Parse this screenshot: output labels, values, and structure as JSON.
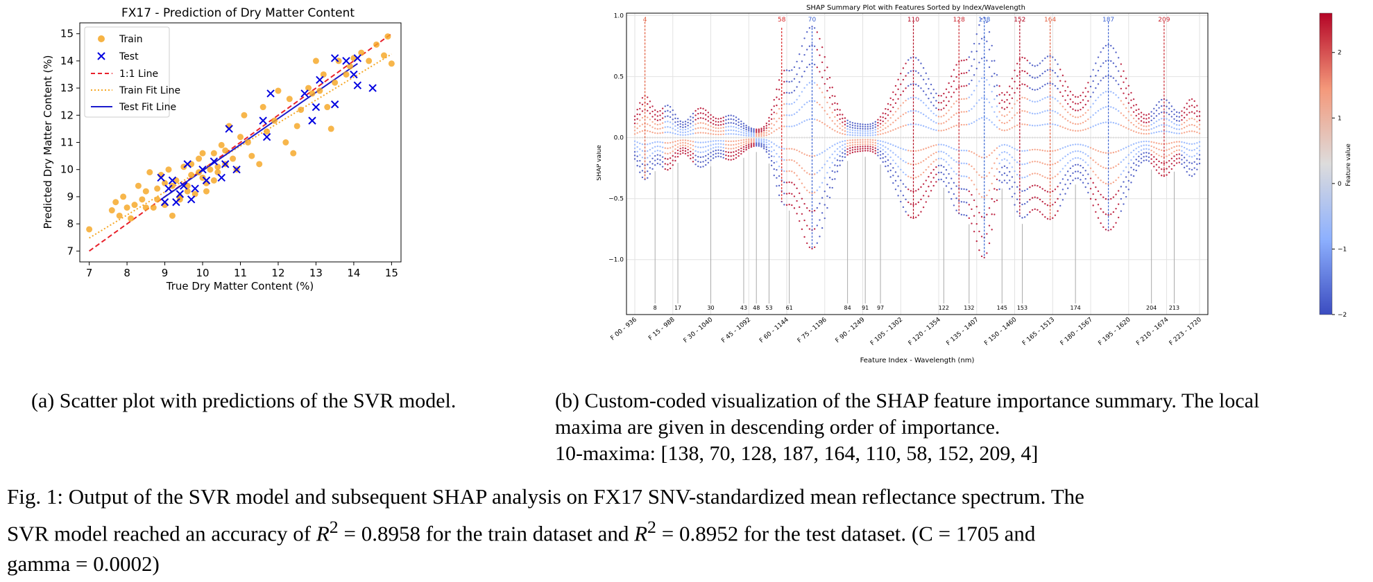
{
  "chart_data": [
    {
      "type": "scatter",
      "title": "FX17 - Prediction of Dry Matter Content",
      "xlabel": "True Dry Matter Content (%)",
      "ylabel": "Predicted Dry Matter Content (%)",
      "xlim": [
        6.75,
        15.25
      ],
      "ylim": [
        6.6,
        15.4
      ],
      "xticks": [
        "7",
        "8",
        "9",
        "10",
        "11",
        "12",
        "13",
        "14",
        "15"
      ],
      "yticks": [
        "7",
        "8",
        "9",
        "10",
        "11",
        "12",
        "13",
        "14",
        "15"
      ],
      "grid": false,
      "legend_position": "top-left",
      "legend": [
        "Train",
        "Test",
        "1:1 Line",
        "Train Fit Line",
        "Test Fit Line"
      ],
      "colors": {
        "train": "#f5a623",
        "test": "#0000e0",
        "identity": "#e8202a",
        "train_fit": "#f5a623",
        "test_fit": "#1a1acc"
      },
      "lines": {
        "identity": [
          [
            7,
            7
          ],
          [
            15,
            15
          ]
        ],
        "train_fit": [
          [
            7,
            7.48
          ],
          [
            15,
            14.25
          ]
        ],
        "test_fit": [
          [
            8.9,
            8.9
          ],
          [
            14.1,
            13.9
          ]
        ]
      },
      "train_points": [
        [
          7.0,
          7.8
        ],
        [
          7.6,
          8.5
        ],
        [
          7.7,
          8.8
        ],
        [
          7.8,
          8.3
        ],
        [
          7.9,
          9.0
        ],
        [
          8.0,
          8.6
        ],
        [
          8.1,
          8.2
        ],
        [
          8.2,
          8.7
        ],
        [
          8.3,
          9.4
        ],
        [
          8.4,
          8.9
        ],
        [
          8.5,
          9.2
        ],
        [
          8.6,
          9.9
        ],
        [
          8.7,
          8.6
        ],
        [
          8.8,
          9.3
        ],
        [
          8.9,
          9.8
        ],
        [
          9.0,
          8.7
        ],
        [
          9.0,
          9.5
        ],
        [
          9.1,
          10.0
        ],
        [
          9.2,
          8.3
        ],
        [
          9.3,
          9.6
        ],
        [
          9.4,
          9.0
        ],
        [
          9.5,
          10.1
        ],
        [
          9.6,
          9.4
        ],
        [
          9.7,
          9.8
        ],
        [
          9.8,
          9.1
        ],
        [
          9.9,
          10.4
        ],
        [
          10.0,
          9.7
        ],
        [
          10.1,
          9.2
        ],
        [
          10.2,
          10.0
        ],
        [
          10.3,
          10.6
        ],
        [
          10.4,
          9.9
        ],
        [
          10.5,
          10.9
        ],
        [
          10.6,
          10.2
        ],
        [
          10.7,
          11.6
        ],
        [
          10.8,
          10.4
        ],
        [
          10.9,
          10.0
        ],
        [
          11.0,
          11.2
        ],
        [
          11.1,
          12.0
        ],
        [
          11.3,
          10.5
        ],
        [
          11.5,
          10.2
        ],
        [
          11.6,
          12.3
        ],
        [
          11.7,
          11.4
        ],
        [
          11.9,
          11.8
        ],
        [
          12.0,
          12.9
        ],
        [
          12.2,
          11.0
        ],
        [
          12.3,
          12.6
        ],
        [
          12.4,
          10.6
        ],
        [
          12.5,
          11.6
        ],
        [
          12.6,
          12.2
        ],
        [
          12.8,
          13.0
        ],
        [
          12.9,
          12.8
        ],
        [
          13.0,
          14.0
        ],
        [
          13.1,
          12.9
        ],
        [
          13.2,
          13.5
        ],
        [
          13.3,
          12.3
        ],
        [
          13.4,
          11.5
        ],
        [
          13.5,
          13.2
        ],
        [
          13.6,
          14.0
        ],
        [
          13.8,
          13.5
        ],
        [
          13.9,
          13.8
        ],
        [
          14.0,
          14.1
        ],
        [
          14.2,
          14.3
        ],
        [
          14.4,
          14.0
        ],
        [
          14.6,
          14.6
        ],
        [
          14.8,
          14.2
        ],
        [
          14.9,
          14.9
        ],
        [
          15.0,
          13.9
        ],
        [
          9.4,
          8.9
        ],
        [
          9.6,
          9.2
        ],
        [
          10.1,
          9.5
        ],
        [
          10.4,
          10.1
        ],
        [
          8.8,
          8.9
        ],
        [
          9.2,
          9.4
        ],
        [
          9.9,
          9.9
        ],
        [
          10.6,
          10.7
        ],
        [
          11.2,
          11.0
        ],
        [
          8.5,
          8.6
        ],
        [
          9.7,
          10.2
        ],
        [
          10.0,
          10.6
        ],
        [
          10.3,
          9.6
        ]
      ],
      "test_points": [
        [
          8.9,
          9.7
        ],
        [
          9.0,
          8.8
        ],
        [
          9.1,
          9.3
        ],
        [
          9.2,
          9.6
        ],
        [
          9.3,
          8.8
        ],
        [
          9.4,
          9.1
        ],
        [
          9.5,
          9.4
        ],
        [
          9.6,
          10.2
        ],
        [
          9.7,
          8.9
        ],
        [
          9.8,
          9.3
        ],
        [
          10.0,
          10.0
        ],
        [
          10.1,
          9.6
        ],
        [
          10.3,
          10.3
        ],
        [
          10.5,
          9.7
        ],
        [
          10.6,
          10.2
        ],
        [
          10.7,
          11.5
        ],
        [
          10.9,
          10.0
        ],
        [
          11.6,
          11.8
        ],
        [
          11.7,
          11.2
        ],
        [
          11.8,
          12.8
        ],
        [
          12.7,
          12.8
        ],
        [
          12.9,
          11.8
        ],
        [
          13.0,
          12.3
        ],
        [
          13.1,
          13.3
        ],
        [
          13.5,
          12.4
        ],
        [
          13.5,
          14.1
        ],
        [
          13.8,
          14.0
        ],
        [
          14.0,
          13.5
        ],
        [
          14.1,
          13.1
        ],
        [
          14.1,
          14.1
        ],
        [
          14.5,
          13.0
        ]
      ]
    },
    {
      "type": "scatter",
      "title": "SHAP Summary Plot with Features Sorted by Index/Wavelength",
      "xlabel": "Feature Index - Wavelength (nm)",
      "ylabel": "SHAP value",
      "ylim": [
        -1.45,
        1.02
      ],
      "yticks": [
        "1.0",
        "0.5",
        "0.0",
        "−0.5",
        "−1.0"
      ],
      "grid": true,
      "xtick_labels": [
        "F 00 - 936",
        "F 15 - 988",
        "F 30 - 1040",
        "F 45 - 1092",
        "F 60 - 1144",
        "F 75 - 1196",
        "F 90 - 1249",
        "F 105 - 1302",
        "F 120 - 1354",
        "F 135 - 1407",
        "F 150 - 1460",
        "F 165 - 1513",
        "F 180 - 1567",
        "F 195 - 1620",
        "F 210 - 1674",
        "F 223 - 1720"
      ],
      "minima_labels": [
        "8",
        "17",
        "30",
        "43",
        "48",
        "53",
        "61",
        "84",
        "91",
        "97",
        "122",
        "132",
        "145",
        "153",
        "174",
        "204",
        "213"
      ],
      "maxima": [
        {
          "label": "4",
          "color": "#e05a3a",
          "top": 0.95
        },
        {
          "label": "58",
          "color": "#d92020",
          "top": 0.9
        },
        {
          "label": "70",
          "color": "#3a60d0",
          "top": 0.9
        },
        {
          "label": "110",
          "color": "#b0001a",
          "top": 0.95
        },
        {
          "label": "128",
          "color": "#c8202a",
          "top": 0.95
        },
        {
          "label": "138",
          "color": "#3060d0",
          "top": 0.95
        },
        {
          "label": "152",
          "color": "#b0001a",
          "top": 0.95
        },
        {
          "label": "164",
          "color": "#e05a3a",
          "top": 0.95
        },
        {
          "label": "187",
          "color": "#3a60d0",
          "top": 0.95
        },
        {
          "label": "209",
          "color": "#c8202a",
          "top": 0.95
        }
      ],
      "colorbar": {
        "label": "Feature value",
        "ticks": [
          "2",
          "1",
          "0",
          "−1",
          "−2"
        ],
        "colors": [
          "#b40426",
          "#f4987a",
          "#dddcdc",
          "#8db0fe",
          "#3b4cc0"
        ]
      }
    }
  ],
  "captions": {
    "a": "(a) Scatter plot with predictions of the SVR model.",
    "b_line1": "(b) Custom-coded visualization of the SHAP feature importance summary. The local",
    "b_line2": "maxima are given in descending order of importance.",
    "b_line3": "10-maxima: [138, 70, 128, 187, 164, 110, 58, 152, 209, 4]",
    "fig_line1": "Fig. 1: Output of the SVR model and subsequent SHAP analysis on FX17 SNV-standardized mean reflectance spectrum. The",
    "fig_line2a": "SVR model reached an accuracy of ",
    "r2_symbol": "R",
    "r2_exp": "2",
    "fig_r2_train": " = 0.8958 for the train dataset and ",
    "fig_r2_test": " = 0.8952 for the test dataset. (C = 1705 and",
    "fig_line3": "gamma = 0.0002)"
  }
}
